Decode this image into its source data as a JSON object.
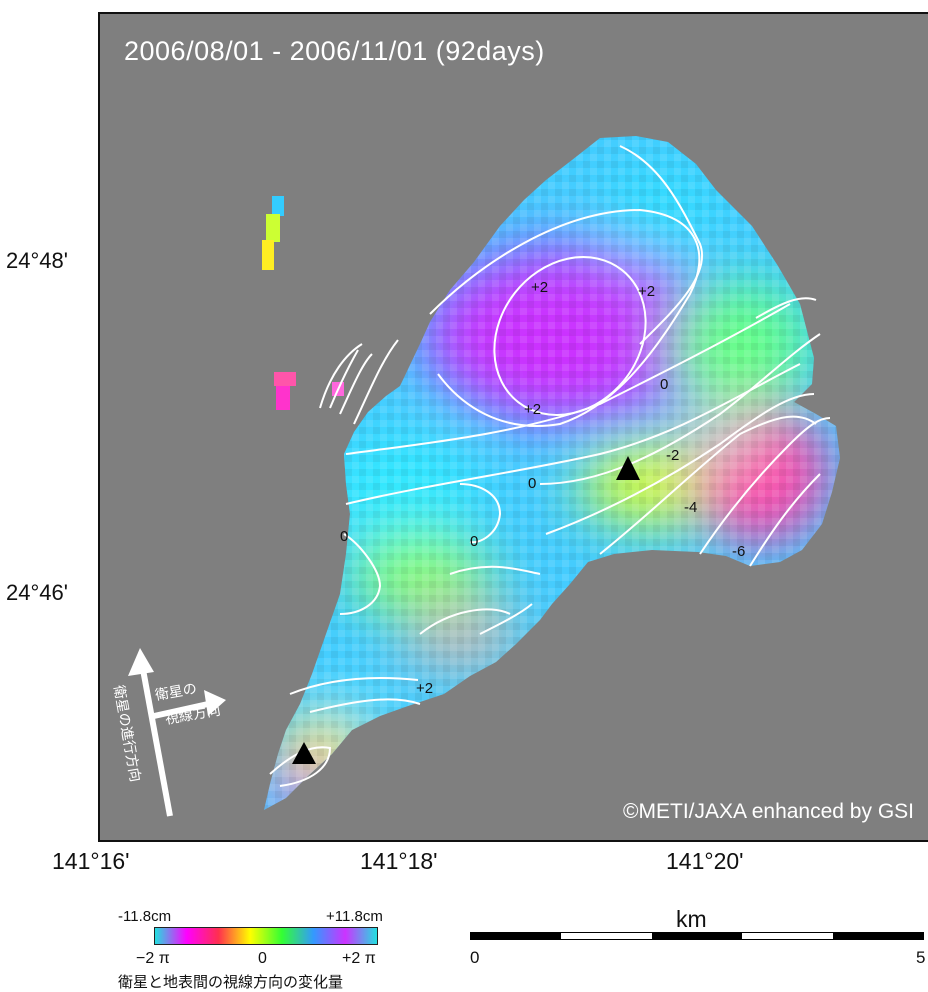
{
  "map": {
    "period": "2006/08/01 - 2006/11/01 (92days)",
    "credit": "©METI/JAXA enhanced by GSI",
    "latitude_labels": [
      "24°48'",
      "24°46'"
    ],
    "longitude_labels": [
      "141°16'",
      "141°18'",
      "141°20'"
    ],
    "contour_labels": [
      "+2",
      "+2",
      "+2",
      "0",
      "-2",
      "0",
      "-4",
      "-6",
      "0",
      "0",
      "+2"
    ],
    "satellite_direction": {
      "flight": "衛星の進行方向",
      "line_of_sight_1": "衛星の",
      "line_of_sight_2": "視線方向"
    },
    "volcano_icon": "black-triangle-icon",
    "background_color": "#7f7f7f"
  },
  "colorbar": {
    "min_cm": "-11.8cm",
    "max_cm": "+11.8cm",
    "tick_min": "−2 π",
    "tick_mid": "0",
    "tick_max": "+2 π",
    "caption": "衛星と地表間の視線方向の変化量",
    "colors": [
      "#22e0e0",
      "#ff00ff",
      "#ff2f4f",
      "#ffff00",
      "#33ff33",
      "#3399ff",
      "#cc33ff",
      "#22e0e0"
    ]
  },
  "scale": {
    "unit": "km",
    "start": "0",
    "end": "5"
  }
}
